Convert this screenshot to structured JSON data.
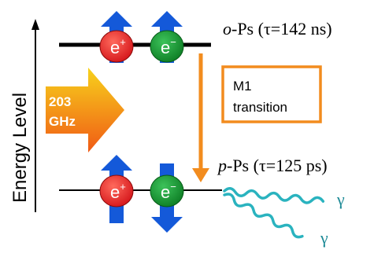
{
  "axis_label": "Energy Level",
  "ortho": {
    "prefix": "o",
    "suffix": "-Ps (τ=142 ns)"
  },
  "para": {
    "prefix": "p",
    "suffix": "-Ps (τ=125 ps)"
  },
  "particles": {
    "positron": "e",
    "positron_sup": "+",
    "electron": "e",
    "electron_sup": "−"
  },
  "excitation": {
    "line1": "203",
    "line2": "GHz"
  },
  "transition": {
    "line1": "M1",
    "line2": "transition"
  },
  "photons": {
    "gamma1": "γ",
    "gamma2": "γ"
  },
  "colors": {
    "spin_arrow": "#1459d9",
    "positron": "#e8201f",
    "electron": "#11922a",
    "transition": "#f28c1e",
    "photon": "#2ab3bf",
    "gamma_text": "#1d8a96",
    "excitation_top": "#f7d21c",
    "excitation_bottom": "#f05a15"
  }
}
